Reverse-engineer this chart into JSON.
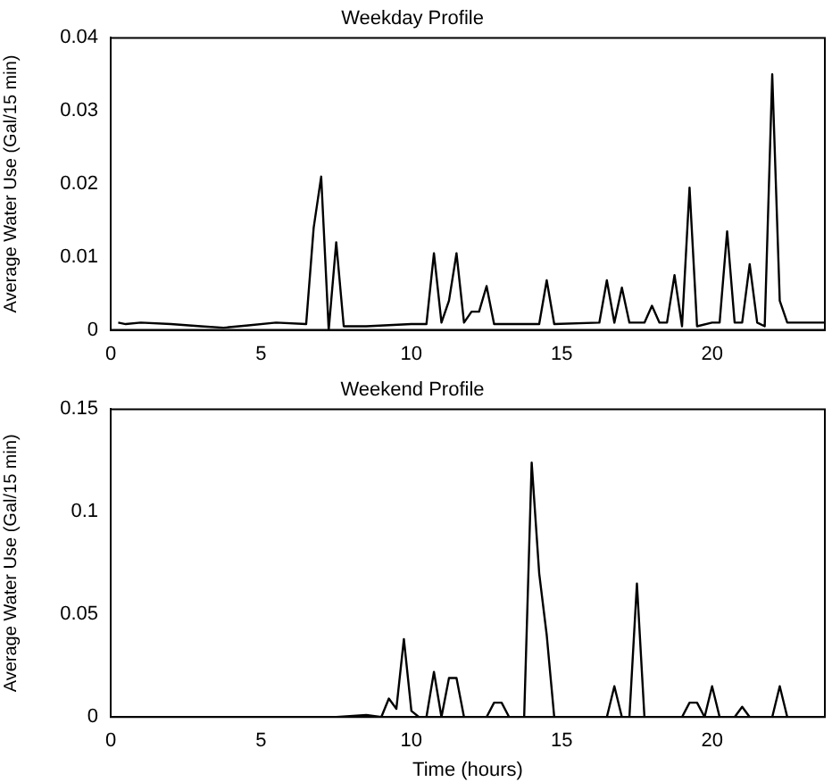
{
  "chart_data": [
    {
      "type": "line",
      "title": "Weekday Profile",
      "ylabel": "Average Water Use (Gal/15 min)",
      "xlim": [
        0,
        23.75
      ],
      "xticks": [
        0,
        5,
        10,
        15,
        20
      ],
      "ylim": [
        0,
        0.04
      ],
      "yticks": [
        0,
        0.01,
        0.02,
        0.03,
        0.04
      ],
      "grid": false,
      "legend": false,
      "marker": "none",
      "series": [
        {
          "color": "#000000",
          "x": [
            0.25,
            0.5,
            1,
            2,
            3,
            3.75,
            4.5,
            5.5,
            6.5,
            6.75,
            7,
            7.25,
            7.5,
            7.75,
            8.5,
            10,
            10.5,
            10.75,
            11,
            11.25,
            11.5,
            11.75,
            12,
            12.25,
            12.5,
            12.75,
            14.25,
            14.5,
            14.75,
            16.25,
            16.5,
            16.75,
            17,
            17.25,
            17.75,
            18,
            18.25,
            18.5,
            18.75,
            19,
            19.25,
            19.5,
            20,
            20.25,
            20.5,
            20.75,
            21,
            21.25,
            21.5,
            21.75,
            22,
            22.25,
            22.5,
            23,
            23.75
          ],
          "values": [
            0.001,
            0.0008,
            0.001,
            0.0008,
            0.0005,
            0.0003,
            0.0006,
            0.001,
            0.0008,
            0.014,
            0.021,
            0,
            0.012,
            0.0005,
            0.0005,
            0.0008,
            0.0008,
            0.0105,
            0.001,
            0.004,
            0.0105,
            0.001,
            0.0025,
            0.0025,
            0.006,
            0.0008,
            0.0008,
            0.0068,
            0.0008,
            0.001,
            0.0068,
            0.001,
            0.0058,
            0.001,
            0.001,
            0.0033,
            0.001,
            0.001,
            0.0075,
            0.0005,
            0.0195,
            0.0005,
            0.001,
            0.001,
            0.0135,
            0.001,
            0.001,
            0.009,
            0.001,
            0.0005,
            0.035,
            0.004,
            0.001,
            0.001,
            0.001
          ]
        }
      ]
    },
    {
      "type": "line",
      "title": "Weekend Profile",
      "xlabel": "Time (hours)",
      "ylabel": "Average Water Use (Gal/15 min)",
      "xlim": [
        0,
        23.75
      ],
      "xticks": [
        0,
        5,
        10,
        15,
        20
      ],
      "ylim": [
        0,
        0.15
      ],
      "yticks": [
        0,
        0.05,
        0.1,
        0.15
      ],
      "grid": false,
      "legend": false,
      "marker": "none",
      "series": [
        {
          "color": "#000000",
          "x": [
            0,
            7.5,
            8.5,
            9,
            9.25,
            9.5,
            9.75,
            10,
            10.25,
            10.5,
            10.75,
            11,
            11.25,
            11.5,
            11.75,
            12.5,
            12.75,
            13,
            13.25,
            13.75,
            14,
            14.25,
            14.5,
            14.75,
            16.5,
            16.75,
            17,
            17.25,
            17.5,
            17.75,
            19,
            19.25,
            19.5,
            19.75,
            20,
            20.25,
            20.75,
            21,
            21.25,
            22,
            22.25,
            22.5,
            23.75
          ],
          "values": [
            0,
            0,
            0.001,
            0,
            0.009,
            0.004,
            0.038,
            0.003,
            0,
            0,
            0.022,
            0,
            0.019,
            0.019,
            0,
            0,
            0.007,
            0.007,
            0,
            0,
            0.124,
            0.07,
            0.04,
            0,
            0,
            0.015,
            0,
            0,
            0.065,
            0,
            0,
            0.007,
            0.007,
            0,
            0.015,
            0,
            0,
            0.005,
            0,
            0,
            0.015,
            0,
            0
          ]
        }
      ]
    }
  ]
}
